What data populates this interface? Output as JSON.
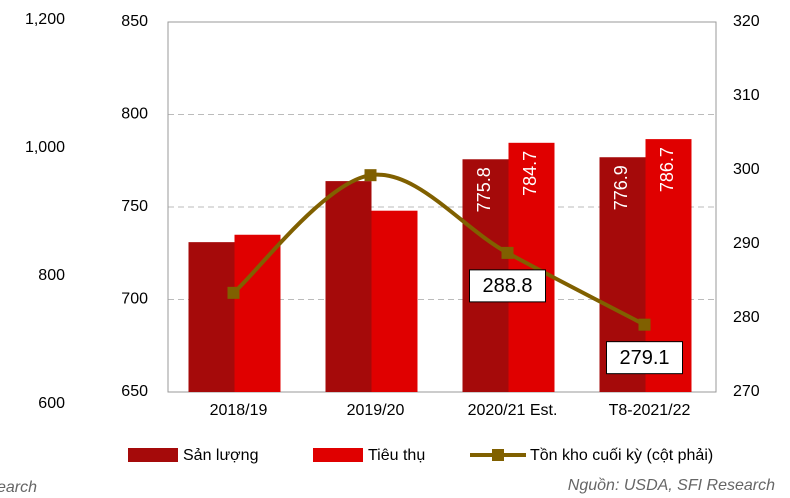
{
  "chart_data": {
    "type": "bar-line",
    "categories": [
      "2018/19",
      "2019/20",
      "2020/21 Est.",
      "T8-2021/22"
    ],
    "series": [
      {
        "name": "Sản lượng",
        "color": "#a50a0a",
        "values": [
          731,
          764,
          775.8,
          776.9
        ],
        "show_labels": [
          false,
          false,
          true,
          true
        ]
      },
      {
        "name": "Tiêu thụ",
        "color": "#e00000",
        "values": [
          735,
          748,
          784.7,
          786.7
        ],
        "show_labels": [
          false,
          false,
          true,
          true
        ]
      },
      {
        "name": "Tồn kho cuối kỳ (cột phải)",
        "color": "#806000",
        "axis": "y2",
        "type": "line",
        "values": [
          283.4,
          299.3,
          288.8,
          279.1
        ],
        "show_labels": [
          false,
          false,
          true,
          true
        ]
      }
    ],
    "ylim": [
      650,
      850
    ],
    "yticks": [
      650,
      700,
      750,
      800,
      850
    ],
    "y2lim": [
      270,
      320
    ],
    "y2ticks": [
      270,
      280,
      290,
      300,
      310,
      320
    ],
    "grid": true,
    "legend": "bottom",
    "source": "Nguồn: USDA, SFI Research",
    "stray_axis_ticks": [
      {
        "value": 1200,
        "label": "1,200"
      },
      {
        "value": 1000,
        "label": "1,000"
      },
      {
        "value": 800,
        "label": "800"
      },
      {
        "value": 600,
        "label": "600"
      }
    ],
    "fragment_text": "earch"
  }
}
